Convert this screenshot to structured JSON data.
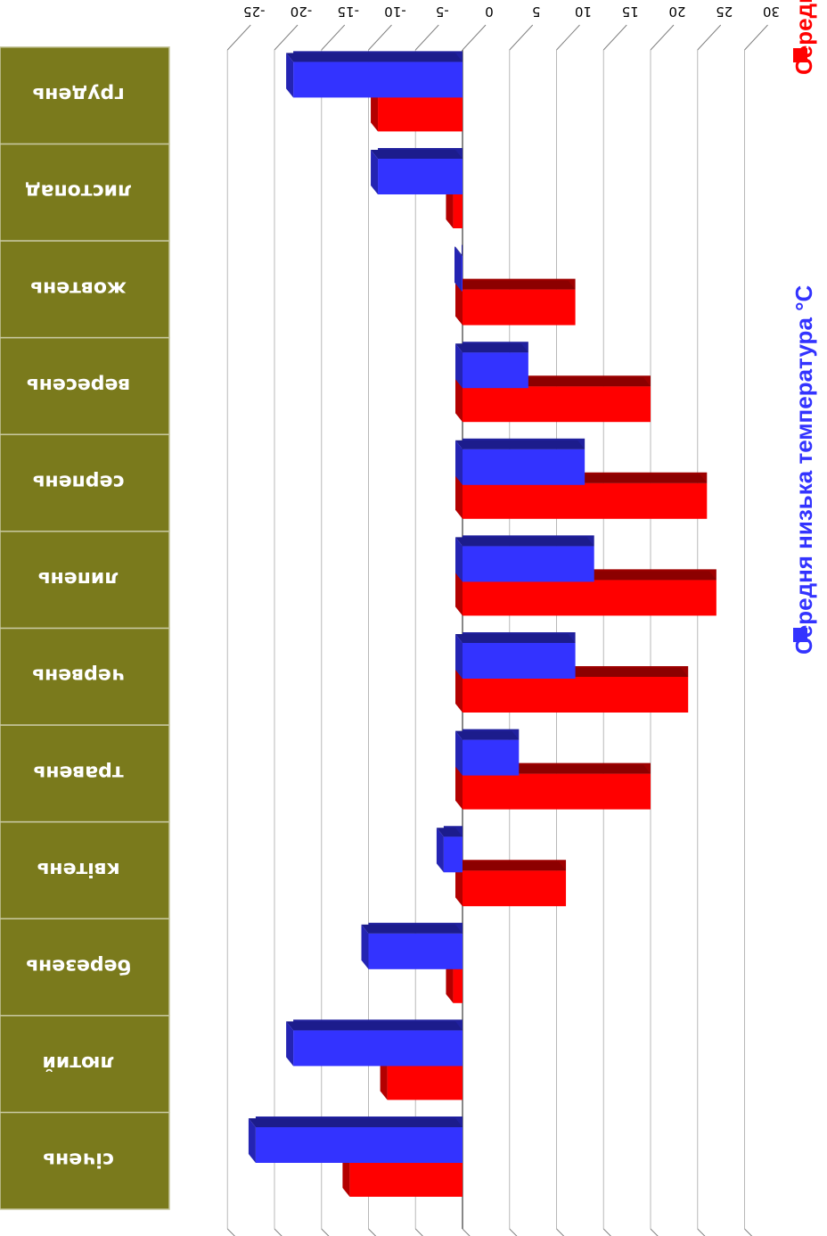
{
  "chart_data": {
    "type": "bar",
    "orientation": "horizontal",
    "image_rotation": "rotated 90 degrees clockwise",
    "categories": [
      "січень",
      "лютий",
      "березень",
      "квітень",
      "травень",
      "червень",
      "липень",
      "серпень",
      "вересень",
      "жовтень",
      "листопад",
      "грудень"
    ],
    "series": [
      {
        "name": "Середня висока температура °C",
        "color": "#ff0000",
        "values": [
          -12,
          -8,
          -1,
          11,
          20,
          24,
          27,
          26,
          20,
          12,
          -1,
          -9
        ]
      },
      {
        "name": "Середня низька температура °C",
        "color": "#3333ff",
        "values": [
          -22,
          -18,
          -10,
          -2,
          6,
          12,
          14,
          13,
          7,
          0,
          -9,
          -18
        ]
      }
    ],
    "value_axis": {
      "ticks": [
        "-25",
        "-20",
        "-15",
        "-10",
        "-5",
        "0",
        "5",
        "10",
        "15",
        "20",
        "25",
        "30"
      ],
      "min": -25,
      "max": 30
    },
    "grid": true,
    "legend": "right",
    "colors": {
      "category_band": "#7a7a1c",
      "band_border": "#c8c8a0"
    }
  }
}
